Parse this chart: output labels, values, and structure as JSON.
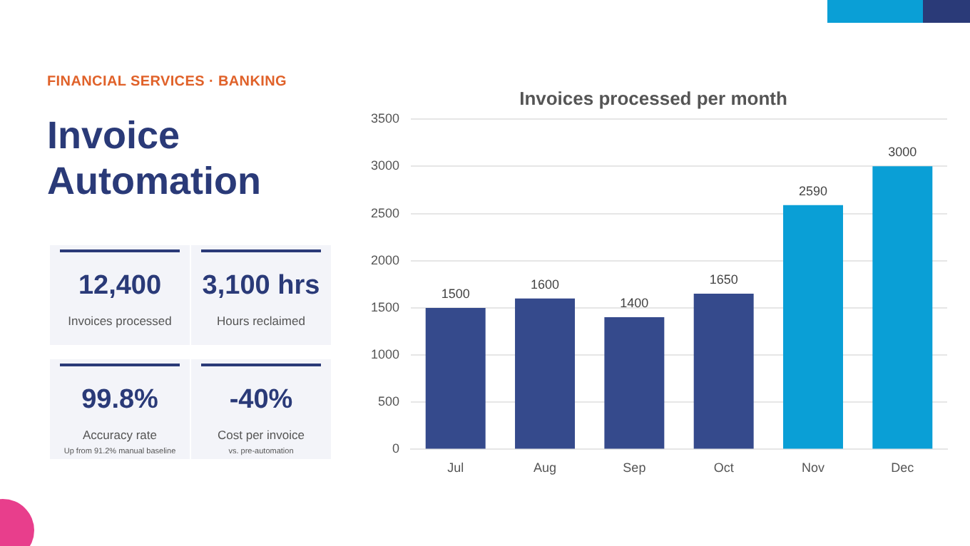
{
  "chart_data": [
    {
      "type": "other",
      "title": "Invoice Automation",
      "subtitle": "FINANCIAL SERVICES · BANKING"
    },
    {
      "type": "other",
      "title": "12,400",
      "subtitle": "Invoices processed"
    },
    {
      "type": "other",
      "title": "3,100 hrs",
      "subtitle": "Hours reclaimed"
    },
    {
      "type": "other",
      "title": "99.8%",
      "subtitle": "Accuracy rate",
      "annotations": [
        "Up from 91.2% manual baseline"
      ]
    },
    {
      "type": "other",
      "title": "-40%",
      "subtitle": "Cost per invoice",
      "annotations": [
        "vs. pre-automation"
      ]
    },
    {
      "type": "bar",
      "title": "Invoices processed per month",
      "categories": [
        "Jul",
        "Aug",
        "Sep",
        "Oct",
        "Nov",
        "Dec"
      ],
      "values": [
        1500,
        1600,
        1400,
        1650,
        2590,
        3000
      ],
      "colors": [
        "#354a8c",
        "#354a8c",
        "#354a8c",
        "#354a8c",
        "#0a9fd6",
        "#0a9fd6"
      ],
      "ylim": [
        0,
        3500
      ],
      "yticks": [
        0,
        500,
        1000,
        1500,
        2000,
        2500,
        3000,
        3500
      ],
      "grid": "y",
      "data_labels": true,
      "legend": false
    }
  ]
}
